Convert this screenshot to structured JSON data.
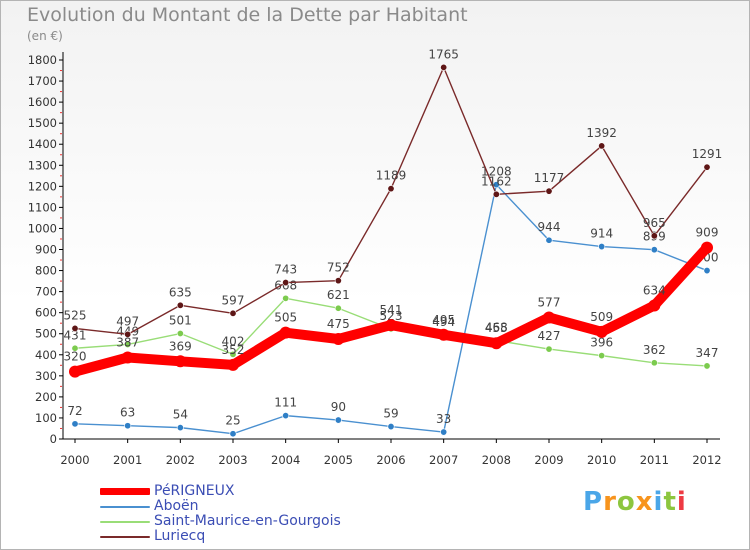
{
  "chart_data": {
    "type": "line",
    "title": "Evolution du Montant de la Dette par Habitant",
    "subtitle": "(en €)",
    "x": [
      "2000",
      "2001",
      "2002",
      "2003",
      "2004",
      "2005",
      "2006",
      "2007",
      "2008",
      "2009",
      "2010",
      "2011",
      "2012"
    ],
    "ylim": [
      0,
      1800
    ],
    "yticks": [
      0,
      100,
      200,
      300,
      400,
      500,
      600,
      700,
      800,
      900,
      1000,
      1100,
      1200,
      1300,
      1400,
      1500,
      1600,
      1700,
      1800
    ],
    "grid": false,
    "legend_position": "bottom-left",
    "series": [
      {
        "name": "Aboën",
        "color": "#4a90d0",
        "marker": "#2f7fc6",
        "values": [
          72,
          63,
          54,
          25,
          111,
          90,
          59,
          33,
          1208,
          944,
          914,
          899,
          800
        ]
      },
      {
        "name": "Saint-Maurice-en-Gourgois",
        "color": "#99dd77",
        "marker": "#7ccb4e",
        "values": [
          431,
          449,
          501,
          402,
          668,
          621,
          523,
          494,
          468,
          427,
          396,
          362,
          347
        ]
      },
      {
        "name": "Luriecq",
        "color": "#7a2a2a",
        "marker": "#5e1616",
        "values": [
          525,
          497,
          635,
          597,
          743,
          752,
          1189,
          1765,
          1162,
          1177,
          1392,
          965,
          1291
        ]
      },
      {
        "name": "PéRIGNEUX",
        "color": "#ff0000",
        "marker": "#ff0000",
        "bold": true,
        "values": [
          320,
          387,
          369,
          352,
          505,
          475,
          541,
          495,
          455,
          577,
          509,
          634,
          909
        ]
      }
    ],
    "legend_order": [
      "PéRIGNEUX",
      "Aboën",
      "Saint-Maurice-en-Gourgois",
      "Luriecq"
    ]
  },
  "brand": {
    "letters": [
      "P",
      "r",
      "o",
      "x",
      "i",
      "t",
      "i"
    ],
    "colors": [
      "#4aa6e8",
      "#f7941d",
      "#8dc63f",
      "#f7941d",
      "#4aa6e8",
      "#8dc63f",
      "#ee3a43"
    ]
  }
}
